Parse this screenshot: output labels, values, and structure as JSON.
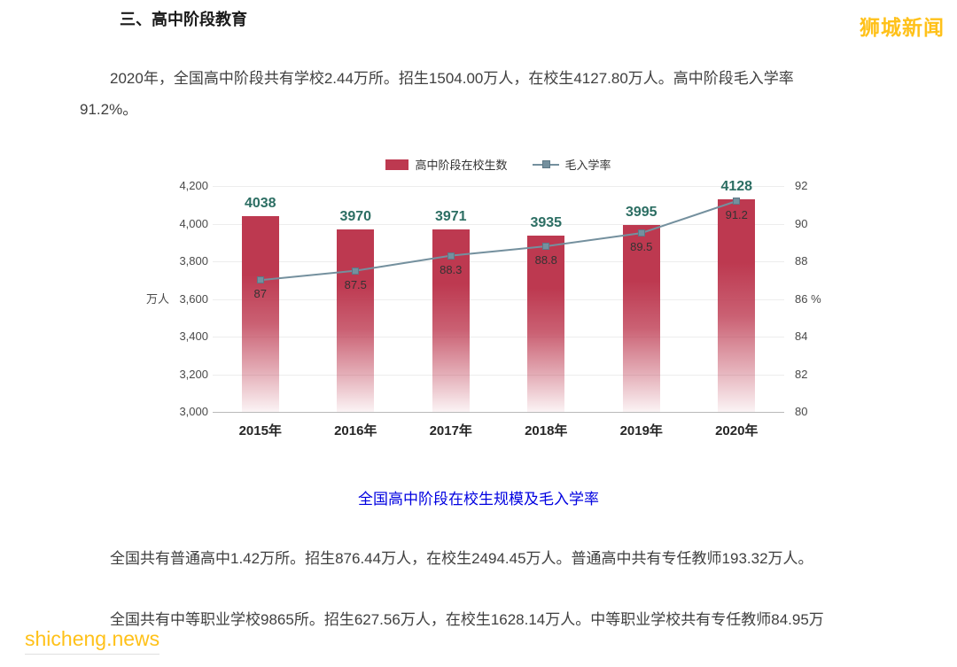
{
  "page": {
    "heading": "三、高中阶段教育",
    "watermark_top": "狮城新闻",
    "watermark_bottom": "shicheng.news",
    "paragraph_intro_line1": "2020年，全国高中阶段共有学校2.44万所。招生1504.00万人，在校生4127.80万人。高中阶段毛入学率",
    "paragraph_intro_line2": "91.2%。",
    "paragraph_regular": "全国共有普通高中1.42万所。招生876.44万人，在校生2494.45万人。普通高中共有专任教师193.32万人。",
    "paragraph_vocational": "全国共有中等职业学校9865所。招生627.56万人，在校生1628.14万人。中等职业学校共有专任教师84.95万"
  },
  "colors": {
    "watermark": "#ffc119",
    "caption": "#0000e0",
    "bar_value_label": "#2c6e63",
    "bar": "#bd3950",
    "line": "#74909e"
  },
  "chart_data": {
    "type": "bar",
    "title": "",
    "caption": "全国高中阶段在校生规模及毛入学率",
    "categories": [
      "2015年",
      "2016年",
      "2017年",
      "2018年",
      "2019年",
      "2020年"
    ],
    "series": [
      {
        "name": "高中阶段在校生数",
        "type": "bar",
        "axis": "left",
        "color": "#bd3950",
        "values": [
          4038,
          3970,
          3971,
          3935,
          3995,
          4128
        ]
      },
      {
        "name": "毛入学率",
        "type": "line",
        "axis": "right",
        "color": "#74909e",
        "values": [
          87,
          87.5,
          88.3,
          88.8,
          89.5,
          91.2
        ]
      }
    ],
    "left_axis": {
      "min": 3000,
      "max": 4200,
      "step": 200,
      "unit": "万人"
    },
    "right_axis": {
      "min": 80,
      "max": 92,
      "step": 2,
      "unit": "%"
    },
    "grid": true,
    "legend_position": "top"
  }
}
